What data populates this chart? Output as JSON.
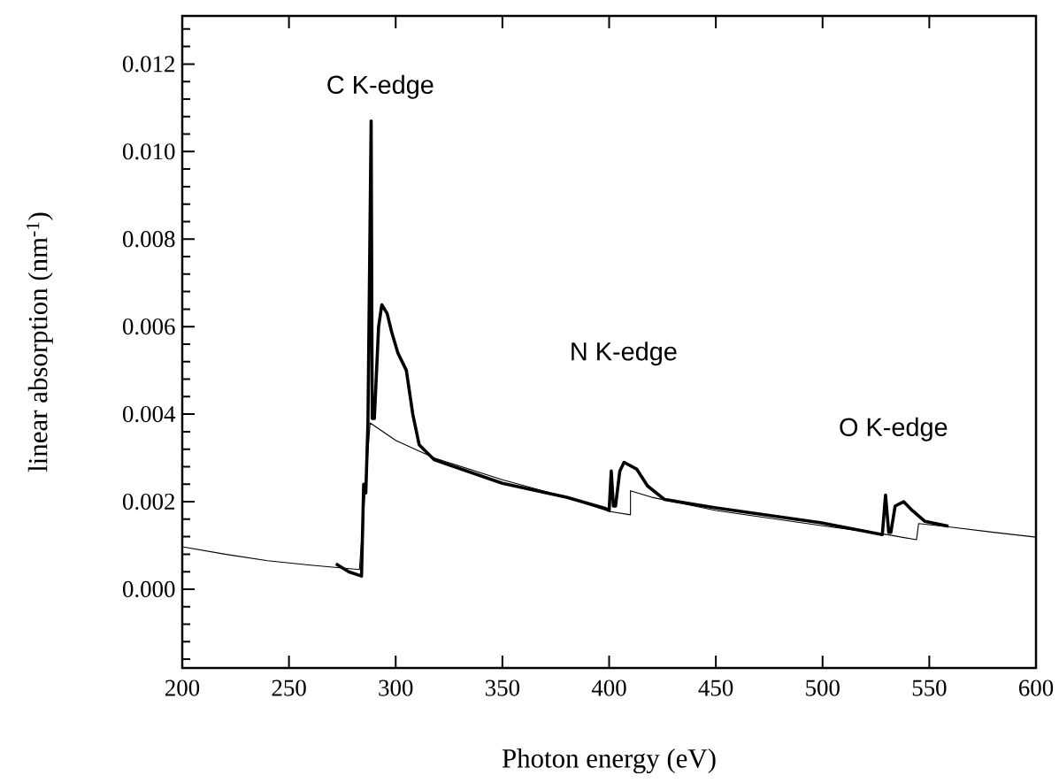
{
  "chart_data": {
    "type": "line",
    "xlabel": "Photon energy (eV)",
    "ylabel": "linear absorption (nm$^{-1}$)",
    "xlim": [
      200,
      600
    ],
    "ylim": [
      -0.0018,
      0.0131
    ],
    "xticks": [
      200,
      250,
      300,
      350,
      400,
      450,
      500,
      550,
      600
    ],
    "yticks": [
      {
        "value": -0.0016,
        "label": null
      },
      {
        "value": -0.0012,
        "label": null
      },
      {
        "value": -0.0008,
        "label": null
      },
      {
        "value": -0.0004,
        "label": null
      },
      {
        "value": 0,
        "label": "0.000"
      },
      {
        "value": 0.0004,
        "label": null
      },
      {
        "value": 0.0008,
        "label": null
      },
      {
        "value": 0.0012,
        "label": null
      },
      {
        "value": 0.0016,
        "label": null
      },
      {
        "value": 0.002,
        "label": "0.002"
      },
      {
        "value": 0.0024,
        "label": null
      },
      {
        "value": 0.0028,
        "label": null
      },
      {
        "value": 0.0032,
        "label": null
      },
      {
        "value": 0.0036,
        "label": null
      },
      {
        "value": 0.004,
        "label": "0.004"
      },
      {
        "value": 0.0044,
        "label": null
      },
      {
        "value": 0.0048,
        "label": null
      },
      {
        "value": 0.0052,
        "label": null
      },
      {
        "value": 0.0056,
        "label": null
      },
      {
        "value": 0.006,
        "label": "0.006"
      },
      {
        "value": 0.0064,
        "label": null
      },
      {
        "value": 0.0068,
        "label": null
      },
      {
        "value": 0.0072,
        "label": null
      },
      {
        "value": 0.0076,
        "label": null
      },
      {
        "value": 0.008,
        "label": "0.008"
      },
      {
        "value": 0.0084,
        "label": null
      },
      {
        "value": 0.0088,
        "label": null
      },
      {
        "value": 0.0092,
        "label": null
      },
      {
        "value": 0.0096,
        "label": null
      },
      {
        "value": 0.01,
        "label": "0.010"
      },
      {
        "value": 0.0104,
        "label": null
      },
      {
        "value": 0.0108,
        "label": null
      },
      {
        "value": 0.0112,
        "label": null
      },
      {
        "value": 0.0116,
        "label": null
      },
      {
        "value": 0.012,
        "label": "0.012"
      },
      {
        "value": 0.0124,
        "label": null
      },
      {
        "value": 0.0128,
        "label": null
      }
    ],
    "marker": "none",
    "series": [
      {
        "color": "#000000",
        "x": [
          272,
          278,
          284,
          285,
          286,
          287,
          288.5,
          289,
          290,
          292,
          293.5,
          296,
          298,
          301,
          305,
          308,
          311,
          318,
          350,
          380,
          398,
          400,
          401,
          402,
          403,
          405,
          407,
          413,
          418,
          426,
          450,
          499,
          528,
          529.5,
          531,
          532,
          534,
          538,
          542,
          548,
          559
        ],
        "values": [
          0.00058,
          0.0004,
          0.0003,
          0.0024,
          0.0022,
          0.0038,
          0.0107,
          0.0039,
          0.0039,
          0.006,
          0.0065,
          0.0063,
          0.0059,
          0.0054,
          0.005,
          0.004,
          0.0033,
          0.00296,
          0.00242,
          0.0021,
          0.00185,
          0.0018,
          0.0027,
          0.0019,
          0.0019,
          0.0027,
          0.0029,
          0.00274,
          0.00236,
          0.00205,
          0.00186,
          0.00152,
          0.00125,
          0.00215,
          0.0013,
          0.0013,
          0.0019,
          0.002,
          0.0018,
          0.00155,
          0.00144
        ]
      },
      {
        "color": "#000000",
        "x": [
          200,
          220,
          240,
          260,
          283,
          288,
          300,
          318,
          350,
          380,
          400,
          410,
          410,
          420,
          450,
          500,
          530,
          544,
          545,
          560,
          580,
          600
        ],
        "values": [
          0.00097,
          0.0008,
          0.00065,
          0.00055,
          0.00045,
          0.0038,
          0.0034,
          0.003,
          0.0025,
          0.0021,
          0.00178,
          0.0017,
          0.00225,
          0.0021,
          0.0018,
          0.00145,
          0.00125,
          0.00113,
          0.0015,
          0.00142,
          0.0013,
          0.00119
        ]
      }
    ],
    "annotations": [
      "C   K-edge",
      "N   K-edge",
      "O   K-edge"
    ]
  }
}
